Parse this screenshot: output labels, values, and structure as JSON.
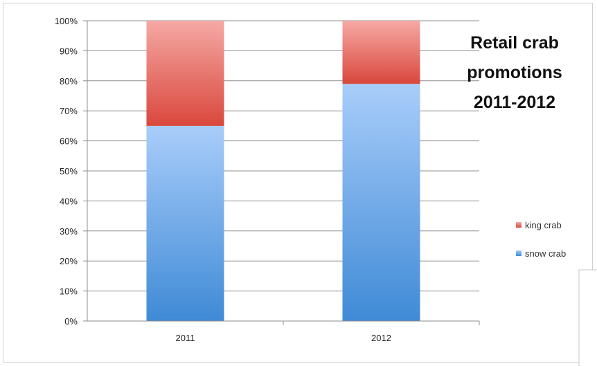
{
  "chart_data": {
    "type": "bar",
    "stacked": true,
    "percent": true,
    "title_lines": [
      "Retail crab",
      "promotions",
      "2011-2012"
    ],
    "categories": [
      "2011",
      "2012"
    ],
    "series": [
      {
        "name": "snow crab",
        "values": [
          65,
          79
        ],
        "color_top": "#a9cdfa",
        "color_bottom": "#3f8ad6"
      },
      {
        "name": "king crab",
        "values": [
          35,
          21
        ],
        "color_top": "#f6a9a5",
        "color_bottom": "#d9473c"
      }
    ],
    "ylim": [
      0,
      100
    ],
    "y_ticks": [
      "0%",
      "10%",
      "20%",
      "30%",
      "40%",
      "50%",
      "60%",
      "70%",
      "80%",
      "90%",
      "100%"
    ],
    "grid": true,
    "legend_position": "right"
  }
}
